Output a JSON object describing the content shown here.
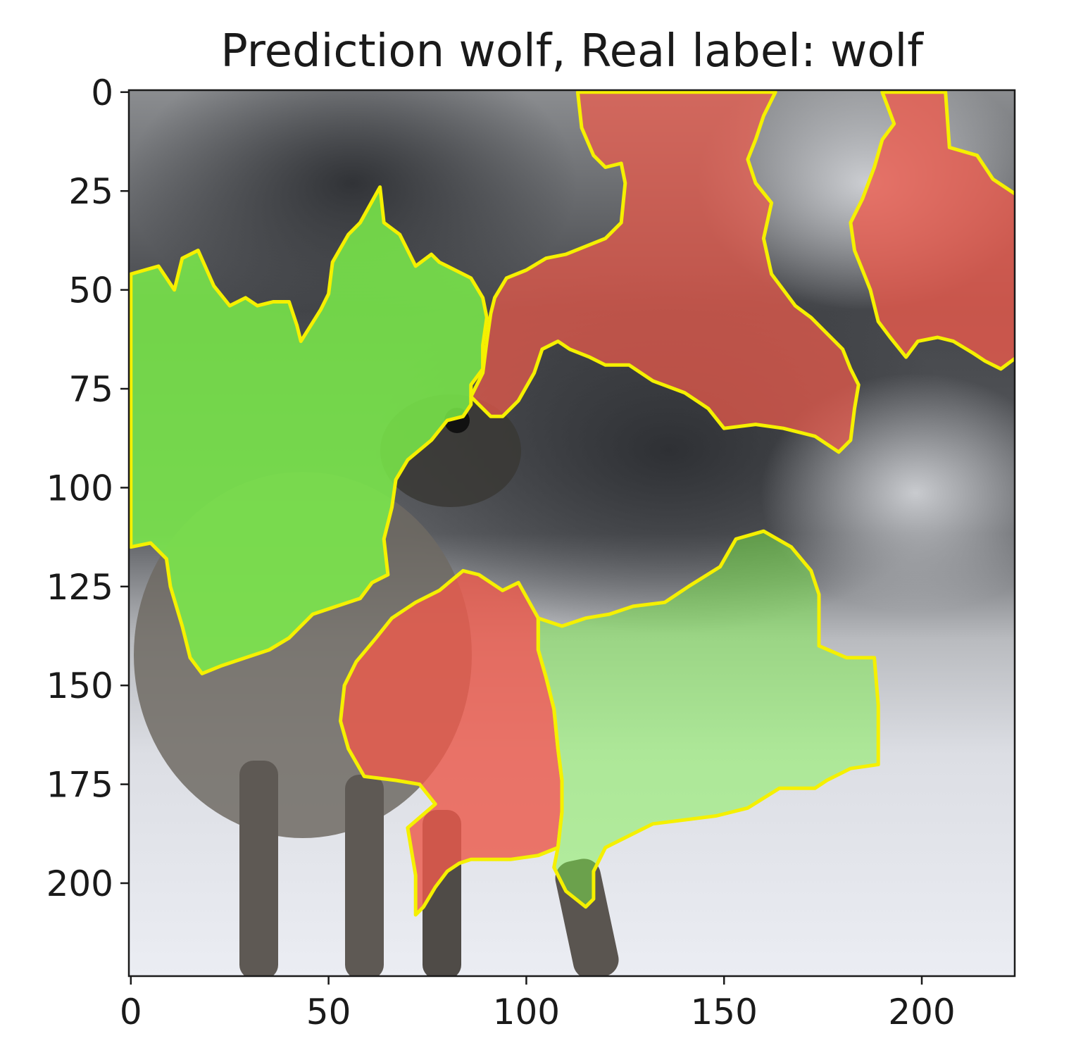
{
  "chart_data": {
    "type": "image",
    "title": "Prediction wolf, Real label: wolf",
    "x_ticks": [
      0,
      50,
      100,
      150,
      200
    ],
    "y_ticks": [
      0,
      25,
      50,
      75,
      100,
      125,
      150,
      175,
      200
    ],
    "xlim": [
      -0.5,
      223.5
    ],
    "ylim": [
      223.5,
      -0.5
    ],
    "y_inverted": true,
    "image_size": [
      224,
      224
    ],
    "boundary_color": "#f5f000",
    "positive_color": "#7cf04a",
    "negative_color": "#ec5a4c",
    "regions": [
      {
        "name": "positive-region-left",
        "polarity": "positive",
        "weight": 0.9,
        "outline": [
          [
            0,
            46
          ],
          [
            7,
            44
          ],
          [
            11,
            50
          ],
          [
            13,
            42
          ],
          [
            17,
            40
          ],
          [
            21,
            49
          ],
          [
            25,
            54
          ],
          [
            29,
            52
          ],
          [
            32,
            54
          ],
          [
            36,
            53
          ],
          [
            40,
            53
          ],
          [
            42,
            59
          ],
          [
            43,
            63
          ],
          [
            48,
            55
          ],
          [
            50,
            51
          ],
          [
            51,
            43
          ],
          [
            55,
            36
          ],
          [
            58,
            33
          ],
          [
            63,
            24
          ],
          [
            64,
            33
          ],
          [
            68,
            36
          ],
          [
            72,
            44
          ],
          [
            76,
            41
          ],
          [
            78,
            43
          ],
          [
            82,
            45
          ],
          [
            86,
            47
          ],
          [
            89,
            52
          ],
          [
            90,
            57
          ],
          [
            89,
            64
          ],
          [
            89,
            70
          ],
          [
            86,
            74
          ],
          [
            86,
            79
          ],
          [
            84,
            82
          ],
          [
            80,
            83
          ],
          [
            76,
            88
          ],
          [
            70,
            93
          ],
          [
            67,
            98
          ],
          [
            66,
            105
          ],
          [
            64,
            113
          ],
          [
            65,
            122
          ],
          [
            61,
            124
          ],
          [
            58,
            128
          ],
          [
            52,
            130
          ],
          [
            46,
            132
          ],
          [
            40,
            138
          ],
          [
            35,
            141
          ],
          [
            29,
            143
          ],
          [
            23,
            145
          ],
          [
            18,
            147
          ],
          [
            15,
            143
          ],
          [
            13,
            135
          ],
          [
            10,
            125
          ],
          [
            9,
            118
          ],
          [
            5,
            114
          ],
          [
            0,
            115
          ]
        ]
      },
      {
        "name": "negative-region-top-center",
        "polarity": "negative",
        "weight": 0.7,
        "outline": [
          [
            113,
            0
          ],
          [
            163,
            0
          ],
          [
            160,
            6
          ],
          [
            158,
            12
          ],
          [
            156,
            17
          ],
          [
            158,
            23
          ],
          [
            162,
            28
          ],
          [
            160,
            37
          ],
          [
            162,
            46
          ],
          [
            165,
            50
          ],
          [
            168,
            54
          ],
          [
            172,
            57
          ],
          [
            176,
            61
          ],
          [
            180,
            65
          ],
          [
            182,
            70
          ],
          [
            184,
            74
          ],
          [
            183,
            80
          ],
          [
            182,
            88
          ],
          [
            179,
            91
          ],
          [
            173,
            87
          ],
          [
            165,
            85
          ],
          [
            158,
            84
          ],
          [
            150,
            85
          ],
          [
            146,
            80
          ],
          [
            140,
            76
          ],
          [
            132,
            73
          ],
          [
            126,
            69
          ],
          [
            120,
            69
          ],
          [
            116,
            67
          ],
          [
            111,
            65
          ],
          [
            108,
            63
          ],
          [
            104,
            65
          ],
          [
            102,
            71
          ],
          [
            98,
            78
          ],
          [
            94,
            82
          ],
          [
            91,
            82
          ],
          [
            88,
            79
          ],
          [
            86,
            77
          ],
          [
            89,
            71
          ],
          [
            90,
            63
          ],
          [
            91,
            56
          ],
          [
            92,
            52
          ],
          [
            95,
            47
          ],
          [
            100,
            45
          ],
          [
            105,
            42
          ],
          [
            110,
            41
          ],
          [
            115,
            39
          ],
          [
            120,
            37
          ],
          [
            124,
            33
          ],
          [
            125,
            23
          ],
          [
            124,
            18
          ],
          [
            120,
            19
          ],
          [
            117,
            16
          ],
          [
            114,
            9
          ]
        ]
      },
      {
        "name": "negative-region-top-right",
        "polarity": "negative",
        "weight": 0.8,
        "outline": [
          [
            190,
            0
          ],
          [
            206,
            0
          ],
          [
            207,
            14
          ],
          [
            214,
            16
          ],
          [
            218,
            22
          ],
          [
            224,
            26
          ],
          [
            224,
            67
          ],
          [
            220,
            70
          ],
          [
            216,
            68
          ],
          [
            213,
            66
          ],
          [
            208,
            63
          ],
          [
            204,
            62
          ],
          [
            199,
            63
          ],
          [
            196,
            67
          ],
          [
            192,
            62
          ],
          [
            189,
            58
          ],
          [
            187,
            50
          ],
          [
            185,
            45
          ],
          [
            183,
            40
          ],
          [
            182,
            33
          ],
          [
            185,
            27
          ],
          [
            188,
            19
          ],
          [
            190,
            12
          ],
          [
            193,
            8
          ]
        ]
      },
      {
        "name": "negative-region-bottom-left",
        "polarity": "negative",
        "weight": 0.85,
        "outline": [
          [
            84,
            121
          ],
          [
            88,
            122
          ],
          [
            94,
            126
          ],
          [
            98,
            124
          ],
          [
            103,
            133
          ],
          [
            103,
            141
          ],
          [
            105,
            148
          ],
          [
            107,
            156
          ],
          [
            108,
            166
          ],
          [
            109,
            174
          ],
          [
            109,
            182
          ],
          [
            108,
            191
          ],
          [
            103,
            193
          ],
          [
            96,
            194
          ],
          [
            86,
            194
          ],
          [
            83,
            195
          ],
          [
            80,
            197
          ],
          [
            77,
            201
          ],
          [
            74,
            206
          ],
          [
            72,
            208
          ],
          [
            72,
            198
          ],
          [
            70,
            186
          ],
          [
            77,
            180
          ],
          [
            73,
            175
          ],
          [
            67,
            174
          ],
          [
            59,
            173
          ],
          [
            55,
            166
          ],
          [
            53,
            159
          ],
          [
            54,
            150
          ],
          [
            57,
            144
          ],
          [
            62,
            138
          ],
          [
            66,
            133
          ],
          [
            72,
            129
          ],
          [
            78,
            126
          ]
        ]
      },
      {
        "name": "positive-region-bottom-center",
        "polarity": "positive",
        "weight": 0.25,
        "outline": [
          [
            103,
            133
          ],
          [
            109,
            135
          ],
          [
            115,
            133
          ],
          [
            121,
            132
          ],
          [
            127,
            130
          ],
          [
            135,
            129
          ],
          [
            141,
            125
          ],
          [
            149,
            120
          ],
          [
            153,
            113
          ],
          [
            160,
            111
          ],
          [
            167,
            115
          ],
          [
            172,
            121
          ],
          [
            174,
            127
          ],
          [
            174,
            134
          ],
          [
            174,
            140
          ],
          [
            181,
            143
          ],
          [
            188,
            143
          ],
          [
            189,
            155
          ],
          [
            189,
            170
          ],
          [
            182,
            171
          ],
          [
            176,
            174
          ],
          [
            173,
            176
          ],
          [
            167,
            176
          ],
          [
            164,
            176
          ],
          [
            156,
            181
          ],
          [
            148,
            183
          ],
          [
            140,
            184
          ],
          [
            132,
            185
          ],
          [
            126,
            188
          ],
          [
            120,
            191
          ],
          [
            117,
            197
          ],
          [
            117,
            204
          ],
          [
            115,
            206
          ],
          [
            110,
            202
          ],
          [
            107,
            196
          ],
          [
            108,
            191
          ],
          [
            109,
            182
          ],
          [
            109,
            174
          ],
          [
            108,
            166
          ],
          [
            107,
            156
          ],
          [
            105,
            148
          ],
          [
            103,
            141
          ]
        ]
      }
    ]
  }
}
